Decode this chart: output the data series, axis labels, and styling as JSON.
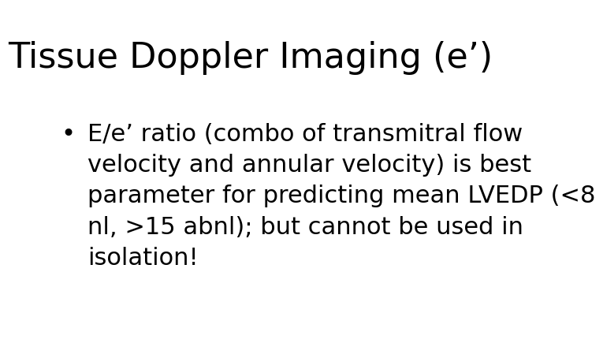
{
  "title": "Tissue Doppler Imaging (e’)",
  "bullet_lines": [
    "E/e’ ratio (combo of transmitral flow",
    "velocity and annular velocity) is best",
    "parameter for predicting mean LVEDP (<8",
    "nl, >15 abnl); but cannot be used in",
    "isolation!"
  ],
  "background_color": "#ffffff",
  "title_color": "#000000",
  "text_color": "#000000",
  "title_fontsize": 32,
  "body_fontsize": 22,
  "bullet_symbol": "•"
}
